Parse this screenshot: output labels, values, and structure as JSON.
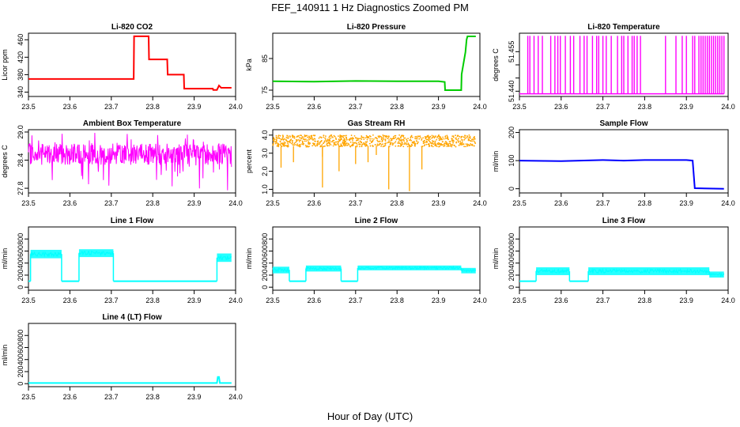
{
  "figure": {
    "title": "FEF_140911  1 Hz Diagnostics Zoomed PM",
    "xlabel": "Hour of Day (UTC)"
  },
  "chart_data": [
    {
      "type": "line",
      "title": "Li-820 CO2",
      "ylabel": "Licor ppm",
      "color": "#ff0000",
      "xlim": [
        23.5,
        24.0
      ],
      "ylim": [
        330,
        475
      ],
      "xticks": [
        "23.5",
        "23.6",
        "23.7",
        "23.8",
        "23.9",
        "24.0"
      ],
      "yticks": [
        340,
        380,
        420,
        460
      ],
      "x": [
        23.5,
        23.754,
        23.755,
        23.79,
        23.791,
        23.835,
        23.836,
        23.875,
        23.876,
        23.945,
        23.946,
        23.955,
        23.96,
        23.965,
        23.99
      ],
      "y": [
        370,
        370,
        468,
        468,
        415,
        415,
        380,
        380,
        348,
        348,
        345,
        345,
        355,
        350,
        350
      ]
    },
    {
      "type": "line",
      "title": "Li-820 Pressure",
      "ylabel": "kPa",
      "color": "#00cc00",
      "xlim": [
        23.5,
        24.0
      ],
      "ylim": [
        73,
        93
      ],
      "xticks": [
        "23.5",
        "23.6",
        "23.7",
        "23.8",
        "23.9",
        "24.0"
      ],
      "yticks": [
        75,
        85
      ],
      "x": [
        23.5,
        23.6,
        23.7,
        23.8,
        23.9,
        23.915,
        23.916,
        23.955,
        23.956,
        23.965,
        23.968,
        23.97,
        23.99
      ],
      "y": [
        77.8,
        77.7,
        77.9,
        77.8,
        77.8,
        77.6,
        75.0,
        75.0,
        80.0,
        87.0,
        91.0,
        92.0,
        92.0
      ]
    },
    {
      "type": "line",
      "title": "Li-820 Temperature",
      "ylabel": "degrees C",
      "color": "#ff00ff",
      "xlim": [
        23.5,
        24.0
      ],
      "ylim": [
        51.438,
        51.462
      ],
      "xticks": [
        "23.5",
        "23.6",
        "23.7",
        "23.8",
        "23.9",
        "24.0"
      ],
      "yticks": [
        51.44,
        51.445,
        51.45,
        51.455
      ],
      "ytick_labels": [
        "51.440",
        "",
        "",
        "51.455"
      ],
      "baseline": 51.439,
      "high": 51.461,
      "spikes_x": [
        23.52,
        23.525,
        23.535,
        23.545,
        23.555,
        23.575,
        23.585,
        23.592,
        23.598,
        23.61,
        23.622,
        23.63,
        23.645,
        23.655,
        23.662,
        23.675,
        23.685,
        23.69,
        23.7,
        23.708,
        23.72,
        23.735,
        23.745,
        23.75,
        23.76,
        23.77,
        23.775,
        23.782,
        23.79,
        23.85,
        23.875,
        23.89,
        23.9,
        23.915,
        23.92,
        23.93,
        23.935,
        23.94,
        23.945,
        23.95,
        23.955,
        23.96,
        23.965,
        23.97,
        23.975,
        23.98,
        23.985,
        23.99
      ]
    },
    {
      "type": "line",
      "title": "Ambient Box Temperature",
      "ylabel": "degrees C",
      "color": "#ff00ff",
      "xlim": [
        23.5,
        24.0
      ],
      "ylim": [
        27.7,
        29.05
      ],
      "xticks": [
        "23.5",
        "23.6",
        "23.7",
        "23.8",
        "23.9",
        "24.0"
      ],
      "yticks": [
        27.8,
        28.4,
        29.0
      ],
      "ytick_labels": [
        "27.8",
        "28.4",
        "29.0"
      ],
      "band": [
        28.3,
        28.75
      ],
      "noise_min": 27.75,
      "noise_max": 29.0
    },
    {
      "type": "scatter",
      "title": "Gas Stream RH",
      "ylabel": "percent",
      "color": "#ffa500",
      "xlim": [
        23.5,
        24.0
      ],
      "ylim": [
        0.8,
        4.3
      ],
      "xticks": [
        "23.5",
        "23.6",
        "23.7",
        "23.8",
        "23.9",
        "24.0"
      ],
      "yticks": [
        1.0,
        2.0,
        3.0,
        4.0
      ],
      "ytick_labels": [
        "1.0",
        "2.0",
        "3.0",
        "4.0"
      ],
      "band": [
        3.35,
        4.0
      ],
      "dips_x": [
        23.52,
        23.55,
        23.62,
        23.66,
        23.7,
        23.73,
        23.78,
        23.83,
        23.86,
        23.62,
        23.75
      ],
      "dips_y": [
        2.2,
        2.5,
        1.1,
        2.0,
        2.4,
        2.5,
        1.0,
        0.9,
        2.1,
        2.8,
        2.9
      ]
    },
    {
      "type": "line",
      "title": "Sample Flow",
      "ylabel": "ml/min",
      "color": "#0000ff",
      "xlim": [
        23.5,
        24.0
      ],
      "ylim": [
        -15,
        210
      ],
      "xticks": [
        "23.5",
        "23.6",
        "23.7",
        "23.8",
        "23.9",
        "24.0"
      ],
      "yticks": [
        0,
        100,
        200
      ],
      "x": [
        23.5,
        23.6,
        23.7,
        23.75,
        23.8,
        23.9,
        23.915,
        23.92,
        23.99
      ],
      "y": [
        100,
        98,
        102,
        100,
        102,
        102,
        100,
        2,
        0
      ]
    },
    {
      "type": "line",
      "title": "Line 1 Flow",
      "ylabel": "ml/min",
      "color": "#00ffff",
      "xlim": [
        23.5,
        24.0
      ],
      "ylim": [
        -50,
        1000
      ],
      "xticks": [
        "23.5",
        "23.6",
        "23.7",
        "23.8",
        "23.9",
        "24.0"
      ],
      "yticks": [
        0,
        200,
        400,
        600,
        800
      ],
      "segments": [
        {
          "x0": 23.5,
          "x1": 23.505,
          "lo": 100,
          "hi": 100
        },
        {
          "x0": 23.505,
          "x1": 23.58,
          "lo": 480,
          "hi": 620
        },
        {
          "x0": 23.58,
          "x1": 23.622,
          "lo": 100,
          "hi": 100
        },
        {
          "x0": 23.622,
          "x1": 23.705,
          "lo": 500,
          "hi": 630
        },
        {
          "x0": 23.705,
          "x1": 23.955,
          "lo": 100,
          "hi": 100
        },
        {
          "x0": 23.955,
          "x1": 23.99,
          "lo": 420,
          "hi": 560
        }
      ]
    },
    {
      "type": "line",
      "title": "Line 2 Flow",
      "ylabel": "ml/min",
      "color": "#00ffff",
      "xlim": [
        23.5,
        24.0
      ],
      "ylim": [
        -50,
        1000
      ],
      "xticks": [
        "23.5",
        "23.6",
        "23.7",
        "23.8",
        "23.9",
        "24.0"
      ],
      "yticks": [
        0,
        200,
        400,
        600,
        800
      ],
      "segments": [
        {
          "x0": 23.5,
          "x1": 23.54,
          "lo": 230,
          "hi": 340
        },
        {
          "x0": 23.54,
          "x1": 23.58,
          "lo": 100,
          "hi": 100
        },
        {
          "x0": 23.58,
          "x1": 23.665,
          "lo": 260,
          "hi": 360
        },
        {
          "x0": 23.665,
          "x1": 23.705,
          "lo": 100,
          "hi": 100
        },
        {
          "x0": 23.705,
          "x1": 23.955,
          "lo": 280,
          "hi": 360
        },
        {
          "x0": 23.955,
          "x1": 23.99,
          "lo": 230,
          "hi": 320
        }
      ]
    },
    {
      "type": "line",
      "title": "Line 3 Flow",
      "ylabel": "ml/min",
      "color": "#00ffff",
      "xlim": [
        23.5,
        24.0
      ],
      "ylim": [
        -50,
        1000
      ],
      "xticks": [
        "23.5",
        "23.6",
        "23.7",
        "23.8",
        "23.9",
        "24.0"
      ],
      "yticks": [
        0,
        200,
        400,
        600,
        800
      ],
      "segments": [
        {
          "x0": 23.5,
          "x1": 23.54,
          "lo": 100,
          "hi": 100
        },
        {
          "x0": 23.54,
          "x1": 23.62,
          "lo": 200,
          "hi": 330
        },
        {
          "x0": 23.62,
          "x1": 23.665,
          "lo": 100,
          "hi": 100
        },
        {
          "x0": 23.665,
          "x1": 23.955,
          "lo": 200,
          "hi": 330
        },
        {
          "x0": 23.955,
          "x1": 23.99,
          "lo": 160,
          "hi": 260
        }
      ]
    },
    {
      "type": "line",
      "title": "Line 4 (LT) Flow",
      "ylabel": "ml/min",
      "color": "#00ffff",
      "xlim": [
        23.5,
        24.0
      ],
      "ylim": [
        -50,
        1000
      ],
      "xticks": [
        "23.5",
        "23.6",
        "23.7",
        "23.8",
        "23.9",
        "24.0"
      ],
      "yticks": [
        0,
        200,
        400,
        600,
        800
      ],
      "x": [
        23.5,
        23.7,
        23.955,
        23.957,
        23.96,
        23.962,
        23.99
      ],
      "y": [
        10,
        10,
        10,
        110,
        110,
        10,
        10
      ]
    }
  ]
}
